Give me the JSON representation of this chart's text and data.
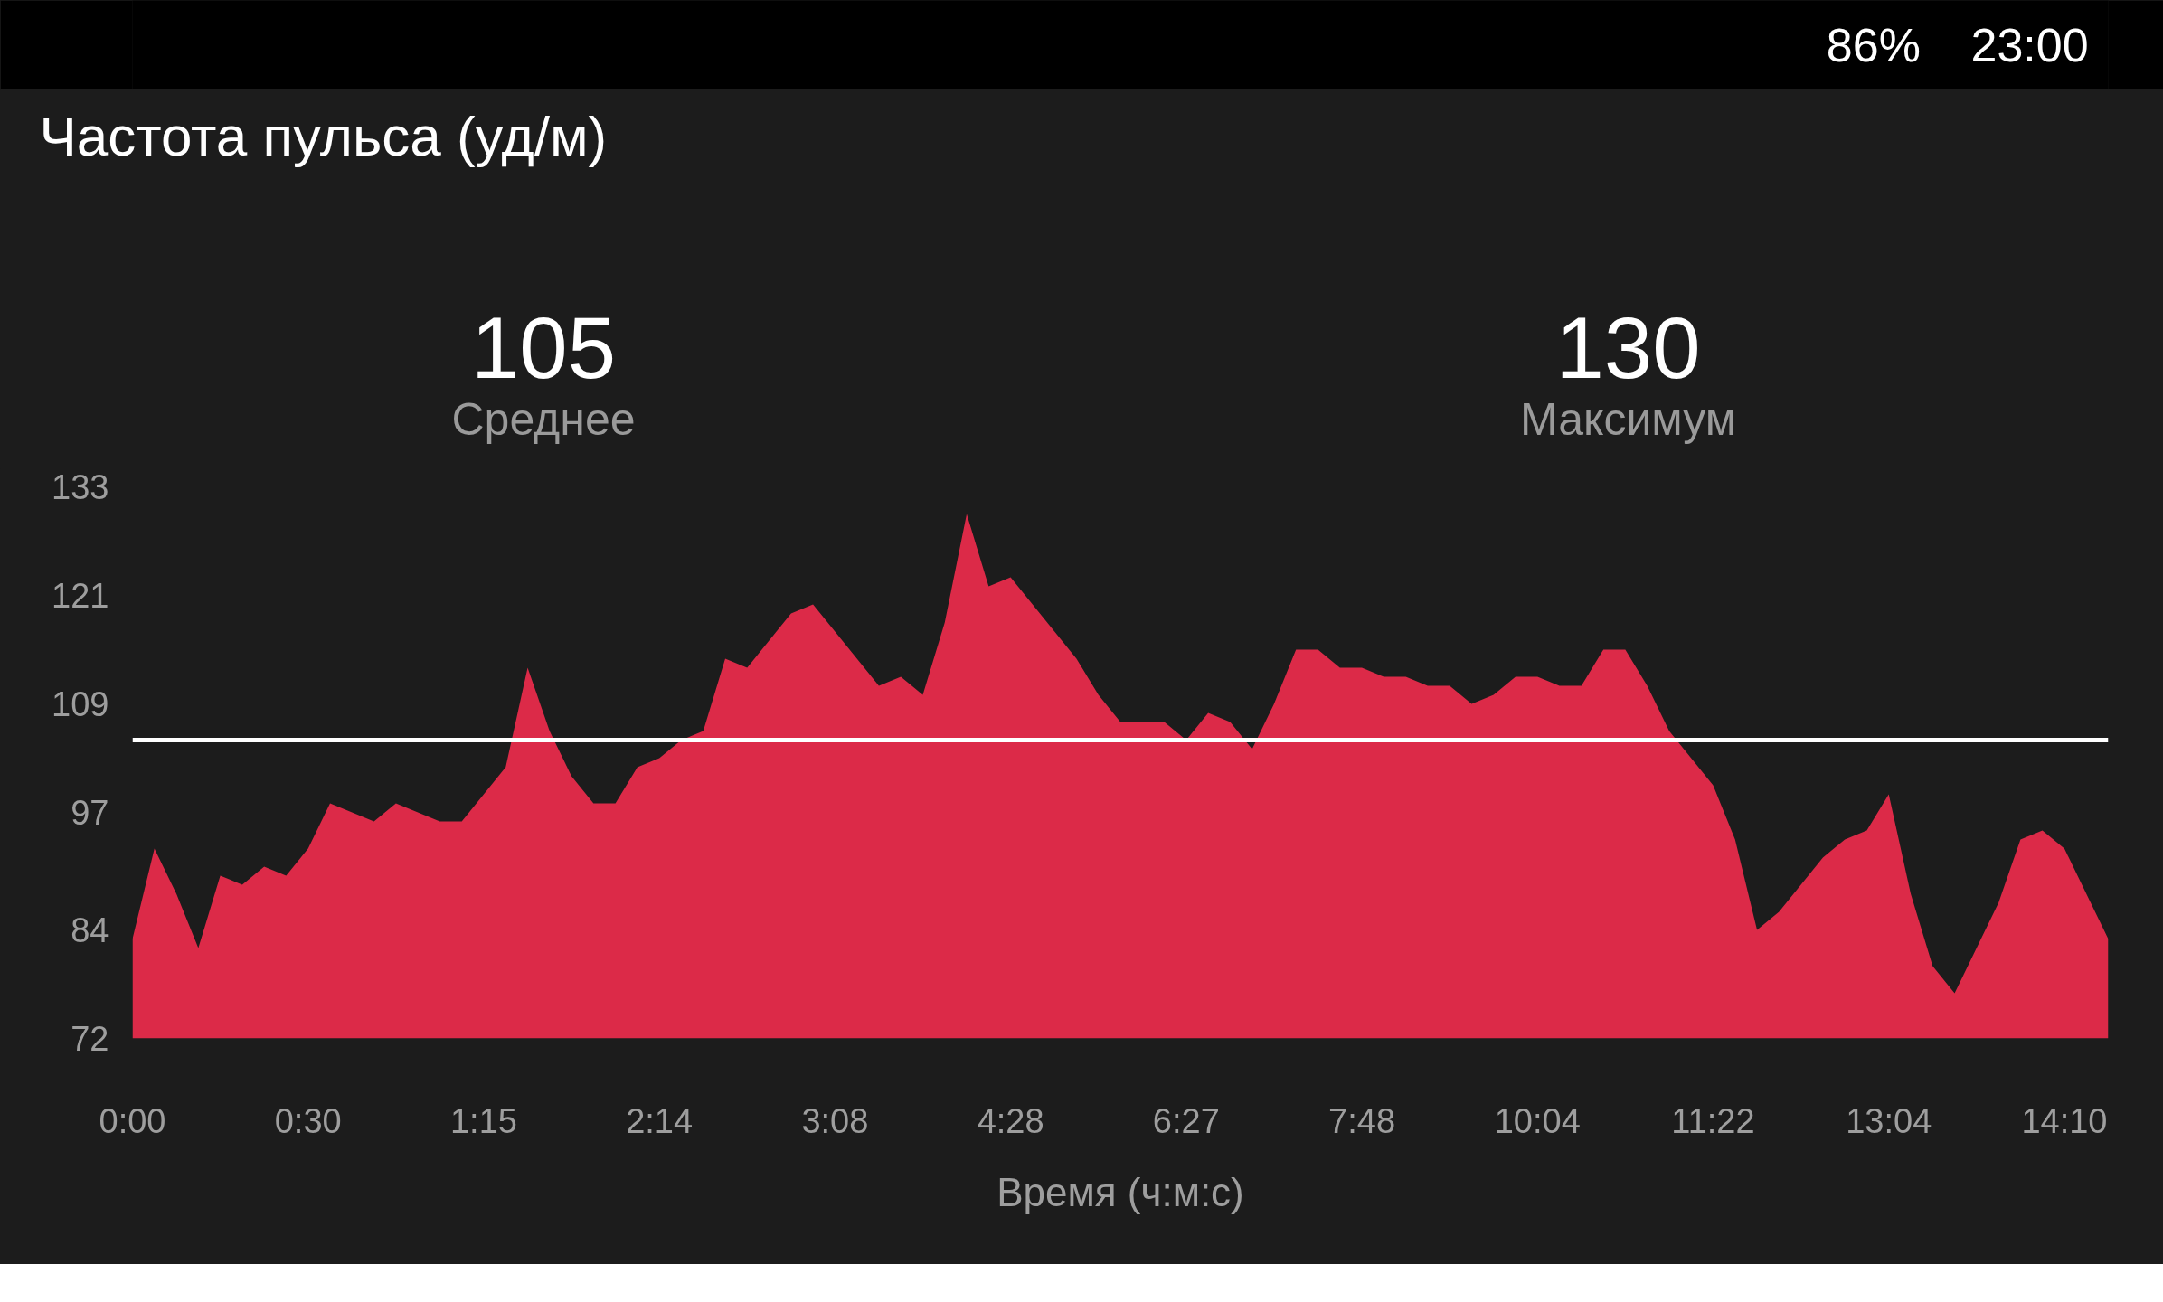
{
  "chart_data": {
    "type": "area",
    "title": "Частота пульса (уд/м)",
    "xlabel": "Время (ч:м:с)",
    "annotations": [
      "105",
      "Среднее",
      "130",
      "Максимум",
      "86%",
      "23:00"
    ],
    "categories": [
      "0:00",
      null,
      null,
      null,
      null,
      null,
      null,
      null,
      "0:30",
      null,
      null,
      null,
      null,
      null,
      null,
      null,
      "1:15",
      null,
      null,
      null,
      null,
      null,
      null,
      null,
      "2:14",
      null,
      null,
      null,
      null,
      null,
      null,
      null,
      "3:08",
      null,
      null,
      null,
      null,
      null,
      null,
      null,
      "4:28",
      null,
      null,
      null,
      null,
      null,
      null,
      null,
      "6:27",
      null,
      null,
      null,
      null,
      null,
      null,
      null,
      "7:48",
      null,
      null,
      null,
      null,
      null,
      null,
      null,
      "10:04",
      null,
      null,
      null,
      null,
      null,
      null,
      null,
      "11:22",
      null,
      null,
      null,
      null,
      null,
      null,
      null,
      "13:04",
      null,
      null,
      null,
      null,
      null,
      null,
      null,
      "14:10",
      null,
      null
    ],
    "series": [
      {
        "color": "#dc2a48",
        "values": [
          83,
          93,
          88,
          82,
          90,
          89,
          91,
          90,
          93,
          98,
          97,
          96,
          98,
          97,
          96,
          96,
          99,
          102,
          113,
          106,
          101,
          98,
          98,
          102,
          103,
          105,
          106,
          114,
          113,
          116,
          119,
          120,
          117,
          114,
          111,
          112,
          110,
          118,
          130,
          122,
          123,
          120,
          117,
          114,
          110,
          107,
          107,
          107,
          105,
          108,
          107,
          104,
          109,
          115,
          115,
          113,
          113,
          112,
          112,
          111,
          111,
          109,
          110,
          112,
          112,
          111,
          111,
          115,
          115,
          111,
          106,
          103,
          100,
          94,
          84,
          86,
          89,
          92,
          94,
          95,
          99,
          88,
          80,
          77,
          82,
          87,
          94,
          95,
          93,
          88,
          83
        ]
      }
    ],
    "ylim": [
      72,
      133
    ],
    "yticks": [
      72,
      84,
      97,
      109,
      121,
      133
    ],
    "ref_lines": [
      {
        "axis": "y",
        "value": 105,
        "label": null,
        "color": "#ffffff"
      }
    ],
    "grid": false
  }
}
